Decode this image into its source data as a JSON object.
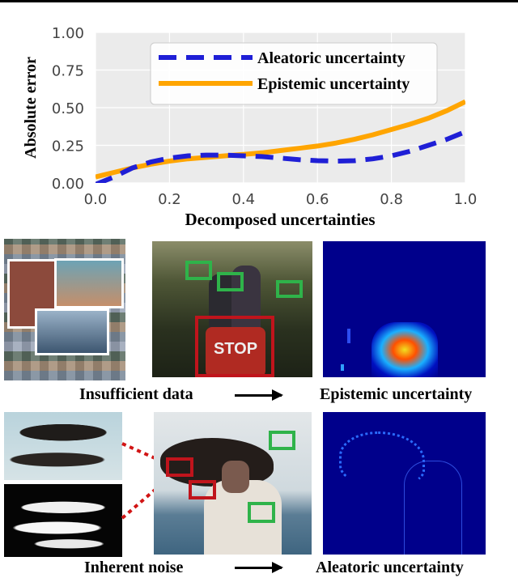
{
  "chart_data": {
    "type": "line",
    "xlabel": "Decomposed uncertainties",
    "ylabel": "Absolute error",
    "xlim": [
      0.0,
      1.0
    ],
    "ylim": [
      0.0,
      1.0
    ],
    "x_ticks": [
      "0.0",
      "0.2",
      "0.4",
      "0.6",
      "0.8",
      "1.0"
    ],
    "y_ticks": [
      "0.00",
      "0.25",
      "0.50",
      "0.75",
      "1.00"
    ],
    "grid": true,
    "legend_position": "top-right",
    "series": [
      {
        "name": "Aleatoric uncertainty",
        "color": "#1f1fd6",
        "style": "dashed",
        "x": [
          0.0,
          0.05,
          0.1,
          0.15,
          0.2,
          0.25,
          0.3,
          0.35,
          0.4,
          0.45,
          0.5,
          0.55,
          0.6,
          0.65,
          0.7,
          0.75,
          0.8,
          0.85,
          0.9,
          0.95,
          1.0
        ],
        "y": [
          -0.01,
          0.04,
          0.1,
          0.14,
          0.165,
          0.18,
          0.185,
          0.185,
          0.18,
          0.175,
          0.165,
          0.155,
          0.148,
          0.145,
          0.148,
          0.16,
          0.18,
          0.21,
          0.25,
          0.29,
          0.34
        ]
      },
      {
        "name": "Epistemic uncertainty",
        "color": "#ffa500",
        "style": "solid",
        "x": [
          0.0,
          0.05,
          0.1,
          0.15,
          0.2,
          0.25,
          0.3,
          0.35,
          0.4,
          0.45,
          0.5,
          0.55,
          0.6,
          0.65,
          0.7,
          0.75,
          0.8,
          0.85,
          0.9,
          0.95,
          1.0
        ],
        "y": [
          0.04,
          0.07,
          0.1,
          0.125,
          0.145,
          0.16,
          0.17,
          0.18,
          0.19,
          0.2,
          0.215,
          0.23,
          0.245,
          0.265,
          0.29,
          0.32,
          0.355,
          0.39,
          0.43,
          0.48,
          0.54
        ]
      }
    ]
  },
  "captions": {
    "insufficient": "Insufficient data",
    "epistemic": "Epistemic uncertainty",
    "inherent": "Inherent noise",
    "aleatoric": "Aleatoric uncertainty"
  },
  "stop_sign_text": "STOP",
  "colors": {
    "highlight_green": "#2fb34a",
    "highlight_red": "#c0141c",
    "heatmap_bg": "#00008b"
  }
}
